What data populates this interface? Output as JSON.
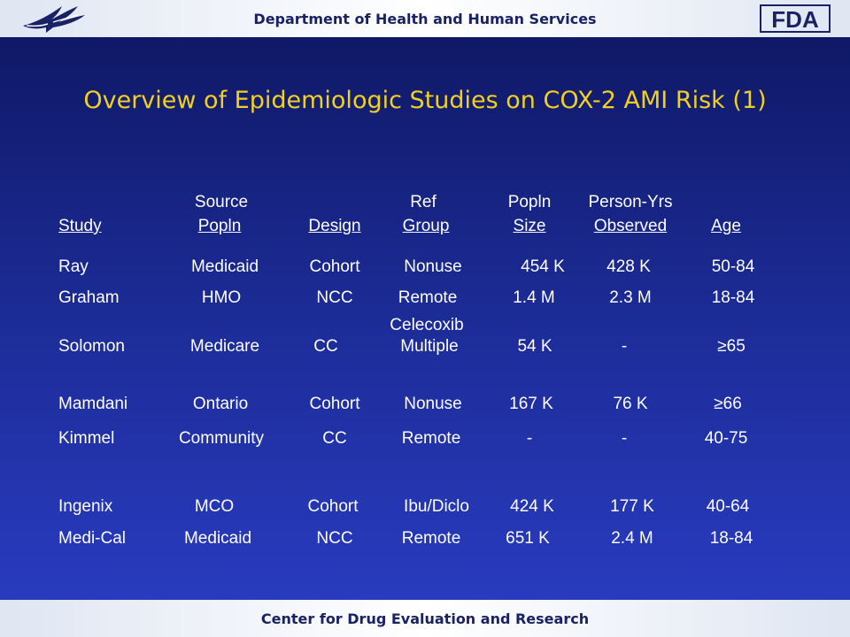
{
  "header": {
    "title": "Department of Health and Human Services"
  },
  "footer": {
    "title": "Center for Drug Evaluation and Research"
  },
  "logos": {
    "left_icon": "hhs-eagle-icon",
    "right_icon": "fda-logo-icon",
    "right_text": "FDA"
  },
  "slide": {
    "title": "Overview of Epidemiologic Studies on COX-2 AMI Risk (1)"
  },
  "table": {
    "header_top": [
      "",
      "Source",
      "",
      "Ref",
      "Popln",
      "Person-Yrs",
      ""
    ],
    "header_bottom": [
      "Study",
      "Popln",
      "Design",
      "Group",
      "Size",
      "Observed",
      "Age"
    ],
    "rows": [
      [
        "Ray",
        "Medicaid",
        "Cohort",
        "Nonuse",
        "454 K",
        "428 K",
        "50-84"
      ],
      [
        "Graham",
        "HMO",
        "NCC",
        "Remote",
        "1.4 M",
        "2.3 M",
        "18-84"
      ],
      [
        "Solomon",
        "Medicare",
        "CC",
        "Multiple",
        "54 K",
        "-",
        "≥65"
      ],
      [
        "Mamdani",
        "Ontario",
        "Cohort",
        "Nonuse",
        "167 K",
        "76 K",
        "≥66"
      ],
      [
        "Kimmel",
        "Community",
        "CC",
        "Remote",
        "-",
        "-",
        "40-75"
      ],
      [
        "Ingenix",
        "MCO",
        "Cohort",
        "Ibu/Diclo",
        "424 K",
        "177 K",
        "40-64"
      ],
      [
        "Medi-Cal",
        "Medicaid",
        "NCC",
        "Remote",
        "651 K",
        "2.4 M",
        "18-84"
      ]
    ],
    "extra_note": "Celecoxib"
  }
}
